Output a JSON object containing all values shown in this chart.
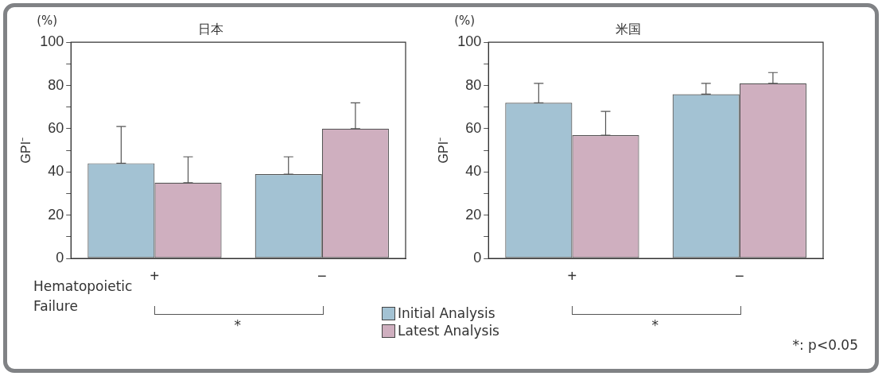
{
  "chart_data": [
    {
      "type": "bar",
      "title": "日本",
      "xlabel": "Hematopoietic Failure",
      "ylabel": "GPI⁻",
      "categories": [
        "+",
        "−"
      ],
      "series": [
        {
          "color": "#a3c2d3",
          "values": [
            44,
            39
          ],
          "errors": [
            [
              44,
              61
            ],
            [
              39,
              47
            ]
          ]
        },
        {
          "color": "#cfafbf",
          "values": [
            35,
            60
          ],
          "errors": [
            [
              35,
              47
            ],
            [
              60,
              72
            ]
          ]
        }
      ],
      "ylim": [
        0,
        100
      ],
      "yticks": [
        0,
        {
          "value": 10,
          "label": null
        },
        20,
        {
          "value": 30,
          "label": null
        },
        40,
        {
          "value": 50,
          "label": null
        },
        60,
        {
          "value": 70,
          "label": null
        },
        80,
        {
          "value": 90,
          "label": null
        },
        100
      ],
      "annotations": [
        "(%)",
        "*"
      ]
    },
    {
      "type": "bar",
      "title": "米国",
      "ylabel": "GPI⁻",
      "categories": [
        "+",
        "−"
      ],
      "series": [
        {
          "name": "Initial Analysis",
          "color": "#a3c2d3",
          "values": [
            72,
            76
          ],
          "errors": [
            [
              72,
              81
            ],
            [
              76,
              81
            ]
          ]
        },
        {
          "name": "Latest Analysis",
          "color": "#cfafbf",
          "values": [
            57,
            81
          ],
          "errors": [
            [
              57,
              68
            ],
            [
              81,
              86
            ]
          ]
        }
      ],
      "ylim": [
        0,
        100
      ],
      "yticks": [
        0,
        {
          "value": 10,
          "label": null
        },
        20,
        {
          "value": 30,
          "label": null
        },
        40,
        {
          "value": 50,
          "label": null
        },
        60,
        {
          "value": 70,
          "label": null
        },
        80,
        {
          "value": 90,
          "label": null
        },
        100
      ],
      "legend": "bottom left",
      "annotations": [
        "(%)",
        "*",
        "*: p<0.05"
      ]
    }
  ]
}
